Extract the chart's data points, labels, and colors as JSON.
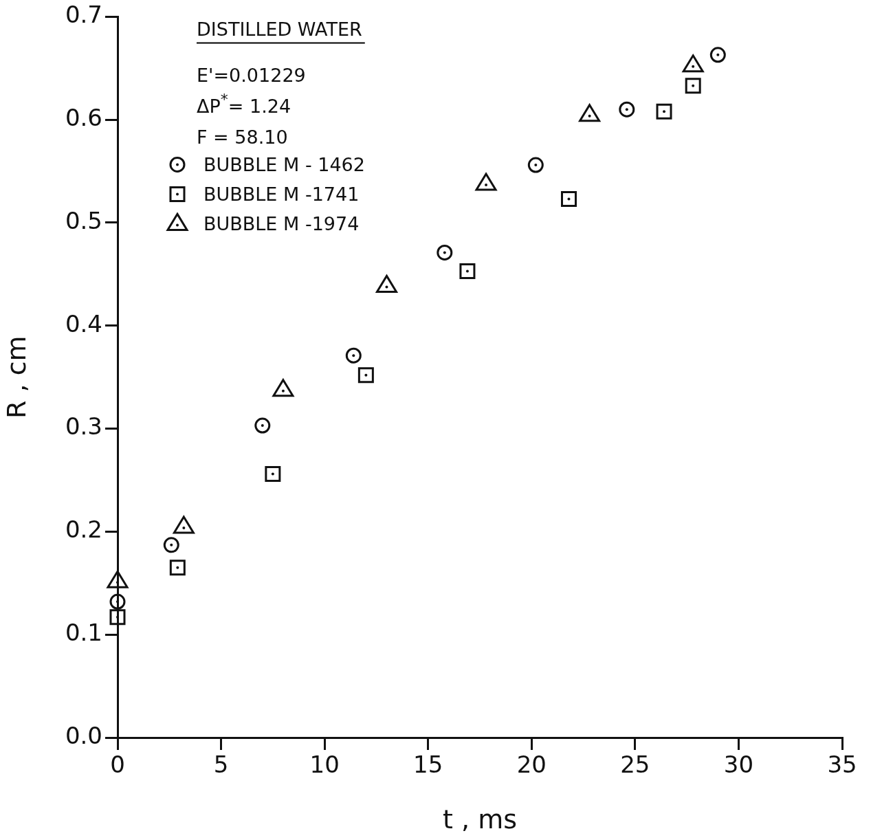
{
  "chart_data": {
    "type": "scatter",
    "xlabel": "t , ms",
    "ylabel": "R , cm",
    "annotations": [
      "DISTILLED WATER",
      "E'=0.01229",
      "ΔP$^{*}$= 1.24",
      "F = 58.10"
    ],
    "xlim": [
      0,
      35
    ],
    "xticks": [
      0,
      5,
      10,
      15,
      20,
      25,
      30,
      35
    ],
    "ylim": [
      0,
      0.7
    ],
    "yticks": [
      {
        "value": 0,
        "label": "0.0"
      },
      0.1,
      0.2,
      0.3,
      0.4,
      0.5,
      0.6,
      0.7
    ],
    "grid": false,
    "legend": "top left",
    "series": [
      {
        "name": "BUBBLE M - 1462",
        "color": "#111111",
        "marker": "circle",
        "x": [
          0,
          2.6,
          7.0,
          11.4,
          15.8,
          20.2,
          24.6,
          29.0
        ],
        "values": [
          0.132,
          0.187,
          0.303,
          0.371,
          0.471,
          0.556,
          0.61,
          0.663
        ]
      },
      {
        "name": "BUBBLE M -1741",
        "color": "#111111",
        "marker": "square",
        "x": [
          0,
          2.9,
          7.5,
          12.0,
          16.9,
          21.8,
          26.4,
          27.8
        ],
        "values": [
          0.117,
          0.165,
          0.256,
          0.352,
          0.453,
          0.523,
          0.608,
          0.633
        ]
      },
      {
        "name": "BUBBLE M -1974",
        "color": "#111111",
        "marker": "triangle",
        "x": [
          0,
          3.2,
          8.0,
          13.0,
          17.8,
          22.8,
          27.8
        ],
        "values": [
          0.152,
          0.205,
          0.338,
          0.439,
          0.538,
          0.605,
          0.653
        ]
      }
    ]
  }
}
